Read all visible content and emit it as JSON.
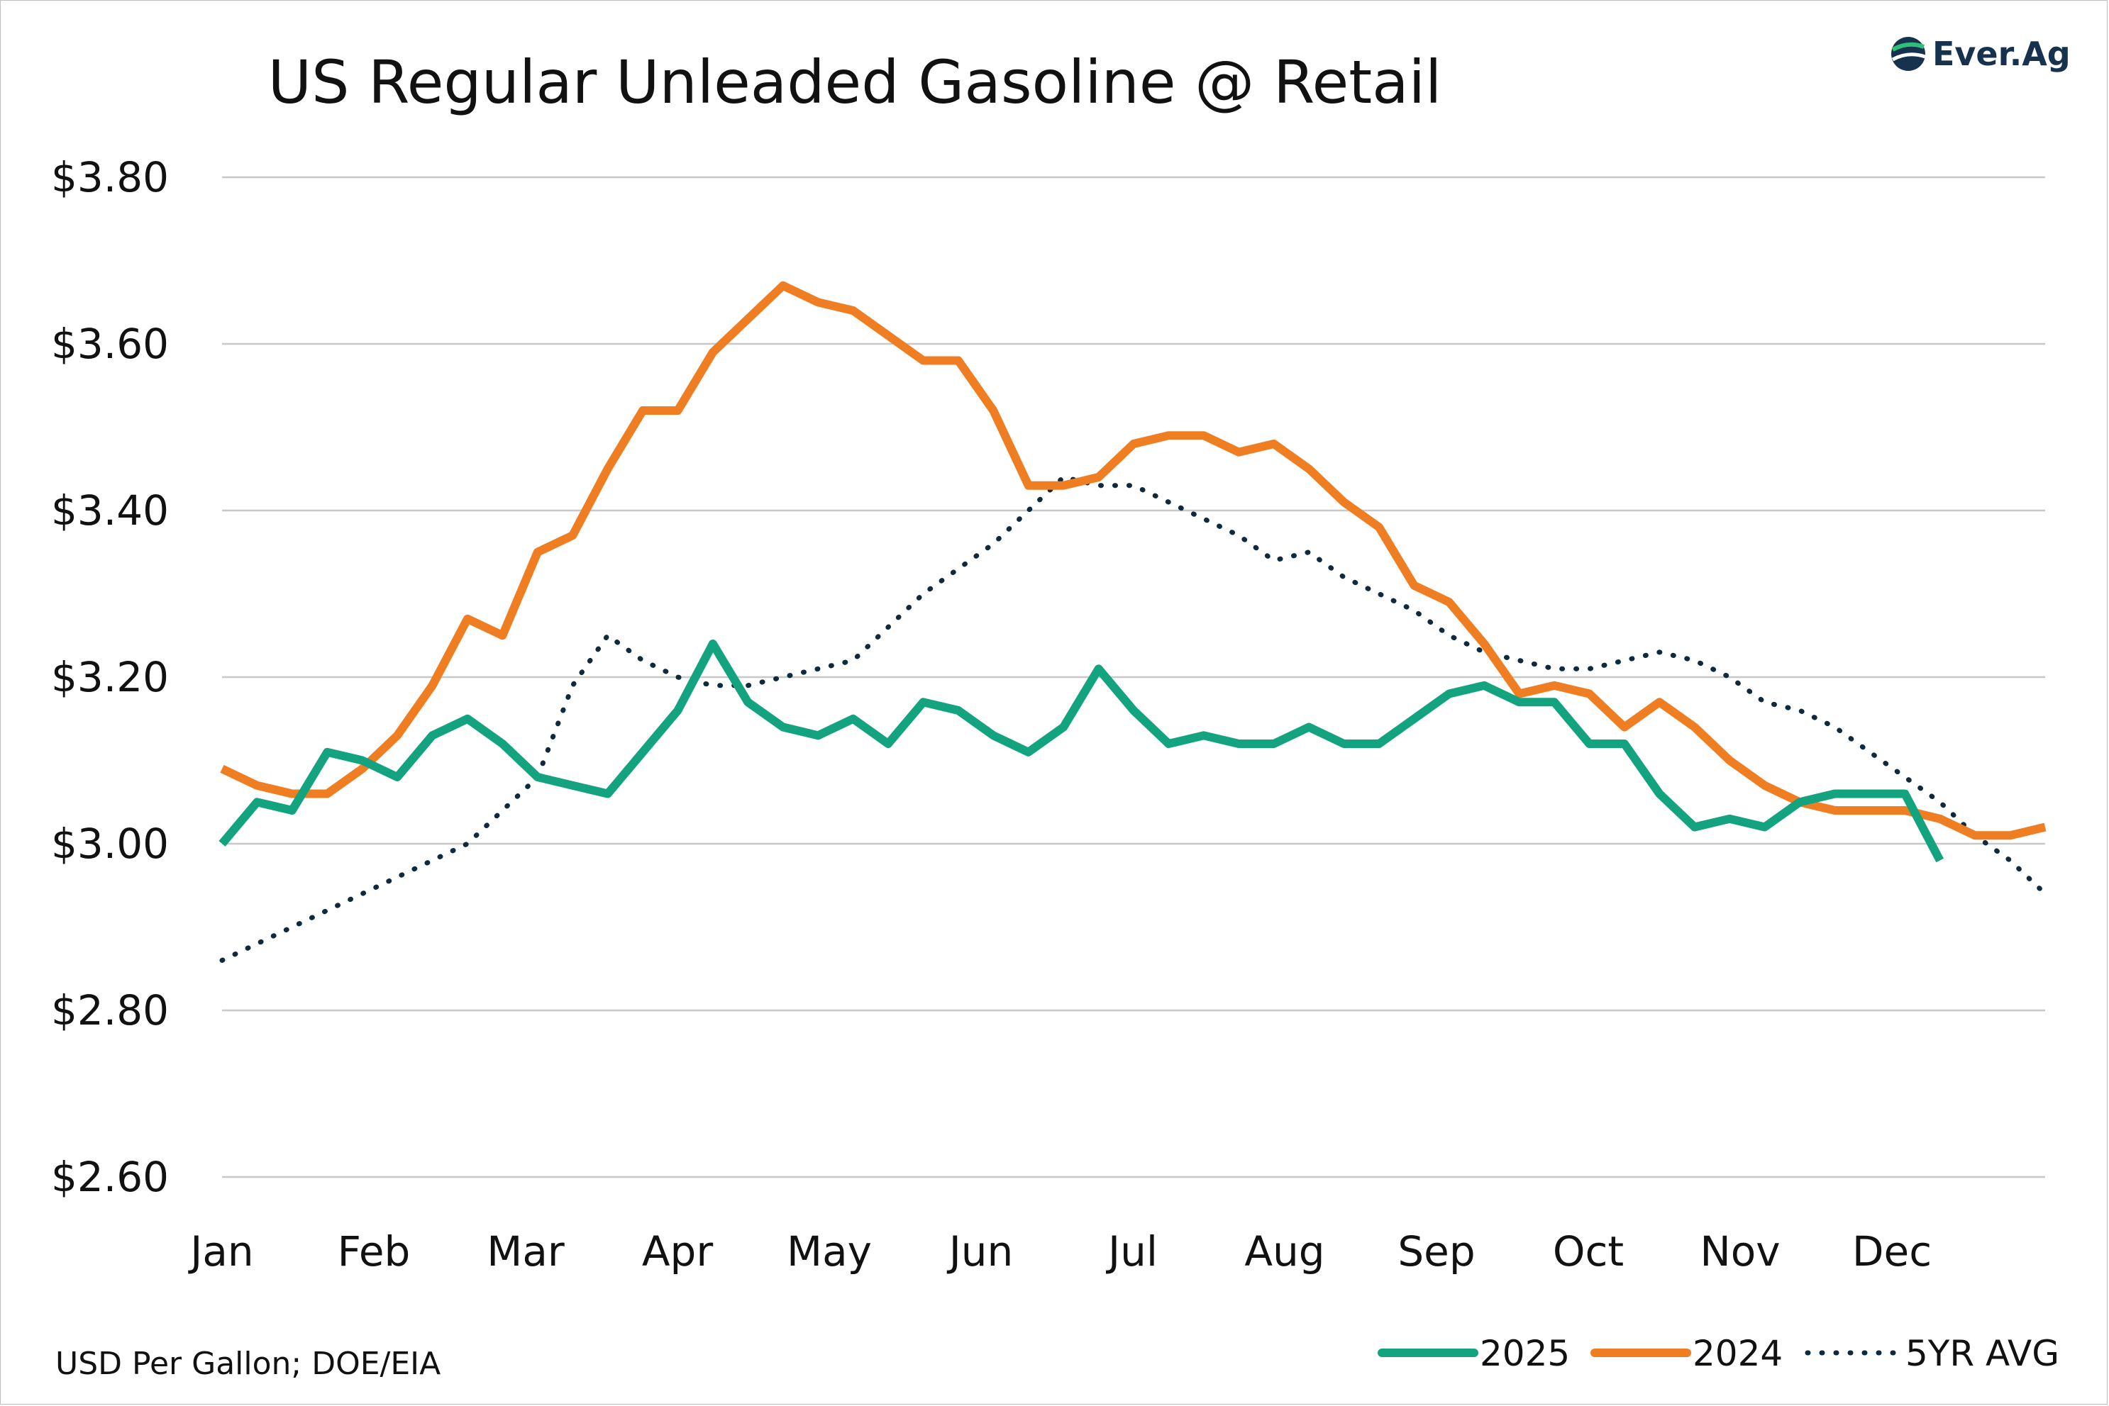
{
  "chart_data": {
    "type": "line",
    "title": "US Regular Unleaded Gasoline @ Retail",
    "note": "USD Per Gallon; DOE/EIA",
    "brand": "Ever.Ag",
    "months": [
      "Jan",
      "Feb",
      "Mar",
      "Apr",
      "May",
      "Jun",
      "Jul",
      "Aug",
      "Sep",
      "Oct",
      "Nov",
      "Dec"
    ],
    "y_ticks": [
      "$3.80",
      "$3.60",
      "$3.40",
      "$3.20",
      "$3.00",
      "$2.80",
      "$2.60"
    ],
    "ylim": [
      2.6,
      3.8
    ],
    "x_unit": "week",
    "x_range": [
      1,
      53
    ],
    "grid": true,
    "legend_position": "bottom-right",
    "series": [
      {
        "name": "2025",
        "color": "#14a37f",
        "style": "solid",
        "x": [
          1,
          2,
          3,
          4,
          5,
          6,
          7,
          8,
          9,
          10,
          11,
          12,
          13,
          14,
          15,
          16,
          17,
          18,
          19,
          20,
          21,
          22,
          23,
          24,
          25,
          26,
          27,
          28,
          29,
          30,
          31,
          32,
          33,
          34,
          35,
          36,
          37,
          38,
          39,
          40,
          41,
          42,
          43,
          44,
          45,
          46,
          47,
          48,
          49,
          50
        ],
        "values": [
          3.0,
          3.05,
          3.04,
          3.11,
          3.1,
          3.08,
          3.13,
          3.15,
          3.12,
          3.08,
          3.07,
          3.06,
          3.11,
          3.16,
          3.24,
          3.17,
          3.14,
          3.13,
          3.15,
          3.12,
          3.17,
          3.16,
          3.13,
          3.11,
          3.14,
          3.21,
          3.16,
          3.12,
          3.13,
          3.12,
          3.12,
          3.14,
          3.12,
          3.12,
          3.15,
          3.18,
          3.19,
          3.17,
          3.17,
          3.12,
          3.12,
          3.06,
          3.02,
          3.03,
          3.02,
          3.05,
          3.06,
          3.06,
          3.06,
          2.98
        ]
      },
      {
        "name": "2024",
        "color": "#ef7d22",
        "style": "solid",
        "x": [
          1,
          2,
          3,
          4,
          5,
          6,
          7,
          8,
          9,
          10,
          11,
          12,
          13,
          14,
          15,
          16,
          17,
          18,
          19,
          20,
          21,
          22,
          23,
          24,
          25,
          26,
          27,
          28,
          29,
          30,
          31,
          32,
          33,
          34,
          35,
          36,
          37,
          38,
          39,
          40,
          41,
          42,
          43,
          44,
          45,
          46,
          47,
          48,
          49,
          50,
          51,
          52,
          53
        ],
        "values": [
          3.09,
          3.07,
          3.06,
          3.06,
          3.09,
          3.13,
          3.19,
          3.27,
          3.25,
          3.35,
          3.37,
          3.45,
          3.52,
          3.52,
          3.59,
          3.63,
          3.67,
          3.65,
          3.64,
          3.61,
          3.58,
          3.58,
          3.52,
          3.43,
          3.43,
          3.44,
          3.48,
          3.49,
          3.49,
          3.47,
          3.48,
          3.45,
          3.41,
          3.38,
          3.31,
          3.29,
          3.24,
          3.18,
          3.19,
          3.18,
          3.14,
          3.17,
          3.14,
          3.1,
          3.07,
          3.05,
          3.04,
          3.04,
          3.04,
          3.03,
          3.01,
          3.01,
          3.02
        ]
      },
      {
        "name": "5YR AVG",
        "color": "#0f2a3d",
        "style": "dotted",
        "x": [
          1,
          2,
          3,
          4,
          5,
          6,
          7,
          8,
          9,
          10,
          11,
          12,
          13,
          14,
          15,
          16,
          17,
          18,
          19,
          20,
          21,
          22,
          23,
          24,
          25,
          26,
          27,
          28,
          29,
          30,
          31,
          32,
          33,
          34,
          35,
          36,
          37,
          38,
          39,
          40,
          41,
          42,
          43,
          44,
          45,
          46,
          47,
          48,
          49,
          50,
          51,
          52,
          53
        ],
        "values": [
          2.86,
          2.88,
          2.9,
          2.92,
          2.94,
          2.96,
          2.98,
          3.0,
          3.04,
          3.08,
          3.19,
          3.25,
          3.22,
          3.2,
          3.19,
          3.19,
          3.2,
          3.21,
          3.22,
          3.26,
          3.3,
          3.33,
          3.36,
          3.4,
          3.44,
          3.43,
          3.43,
          3.41,
          3.39,
          3.37,
          3.34,
          3.35,
          3.32,
          3.3,
          3.28,
          3.25,
          3.23,
          3.22,
          3.21,
          3.21,
          3.22,
          3.23,
          3.22,
          3.2,
          3.17,
          3.16,
          3.14,
          3.11,
          3.08,
          3.05,
          3.01,
          2.98,
          2.94
        ]
      }
    ]
  }
}
